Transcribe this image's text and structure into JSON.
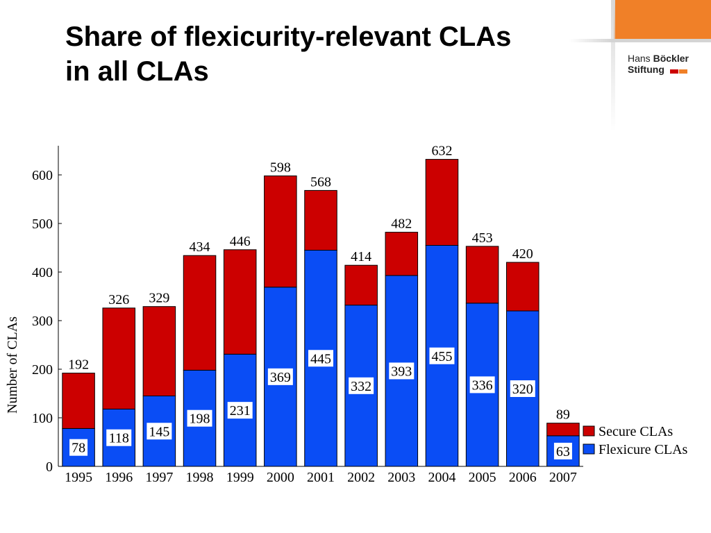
{
  "slide": {
    "title_line1": "Share of flexicurity-relevant CLAs",
    "title_line2": "in all CLAs"
  },
  "logo": {
    "line1_regular": "Hans",
    "line1_bold": "Böckler",
    "line2": "Stiftung",
    "square_colors": [
      "#cc0000",
      "#f08028"
    ]
  },
  "chart_data": {
    "type": "bar",
    "stacked": true,
    "categories": [
      "1995",
      "1996",
      "1997",
      "1998",
      "1999",
      "2000",
      "2001",
      "2002",
      "2003",
      "2004",
      "2005",
      "2006",
      "2007"
    ],
    "series": [
      {
        "name": "Flexicure CLAs",
        "color": "#0a4df5",
        "values": [
          78,
          118,
          145,
          198,
          231,
          369,
          445,
          332,
          393,
          455,
          336,
          320,
          63
        ]
      },
      {
        "name": "Secure CLAs",
        "color": "#cc0000",
        "values": [
          114,
          208,
          184,
          236,
          215,
          229,
          123,
          82,
          89,
          177,
          117,
          100,
          26
        ]
      }
    ],
    "totals": [
      192,
      326,
      329,
      434,
      446,
      598,
      568,
      414,
      482,
      632,
      453,
      420,
      89
    ],
    "title": "",
    "xlabel": "",
    "ylabel": "Number of CLAs",
    "ylim": [
      0,
      660
    ],
    "yticks": [
      0,
      100,
      200,
      300,
      400,
      500,
      600
    ],
    "grid": false,
    "legend_position": "bottom-right",
    "legend_order": [
      "Secure CLAs",
      "Flexicure CLAs"
    ]
  }
}
